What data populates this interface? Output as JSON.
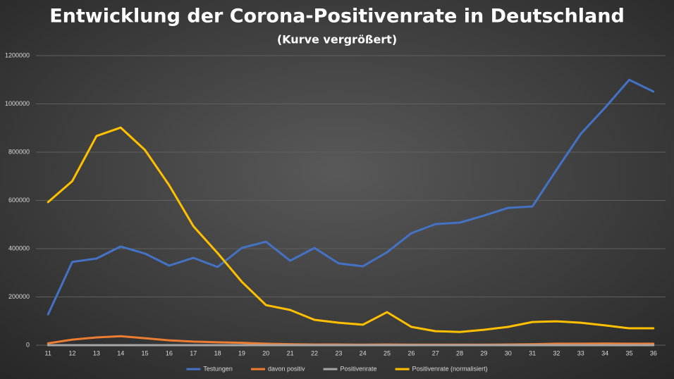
{
  "chart_data": {
    "type": "line",
    "title": "Entwicklung der Corona-Positivenrate in Deutschland",
    "subtitle": "(Kurve vergrößert)",
    "categories": [
      "11",
      "12",
      "13",
      "14",
      "15",
      "16",
      "17",
      "18",
      "19",
      "20",
      "21",
      "22",
      "23",
      "24",
      "25",
      "26",
      "27",
      "28",
      "29",
      "30",
      "31",
      "32",
      "33",
      "34",
      "35",
      "36"
    ],
    "series": [
      {
        "name": "Testungen",
        "color": "#4472c4",
        "values": [
          128000,
          345000,
          359000,
          409000,
          380000,
          330000,
          362000,
          324000,
          403000,
          429000,
          350000,
          403000,
          339000,
          327000,
          385000,
          464000,
          502000,
          508000,
          537000,
          569000,
          575000,
          727000,
          876000,
          984000,
          1100000,
          1051000
        ]
      },
      {
        "name": "davon positiv",
        "color": "#ed7d31",
        "values": [
          8000,
          23000,
          32000,
          37000,
          29000,
          20000,
          15000,
          12000,
          10000,
          6000,
          4000,
          3000,
          3000,
          2000,
          3000,
          2000,
          2000,
          2000,
          2000,
          3000,
          4000,
          6000,
          6000,
          7000,
          6000,
          6000
        ]
      },
      {
        "name": "Positivenrate",
        "color": "#a5a5a5",
        "values": [
          6,
          7,
          9,
          9,
          8,
          6,
          4,
          4,
          2,
          1.5,
          1.2,
          0.8,
          0.8,
          0.7,
          0.8,
          0.5,
          0.4,
          0.4,
          0.4,
          0.5,
          0.7,
          0.8,
          0.7,
          0.7,
          0.5,
          0.6
        ]
      },
      {
        "name": "Positivenrate (normalisiert)",
        "color": "#ffc000",
        "values": [
          593000,
          680000,
          867000,
          902000,
          809000,
          663000,
          493000,
          382000,
          263000,
          166000,
          146000,
          105000,
          93000,
          85000,
          137000,
          76000,
          58000,
          55000,
          64000,
          76000,
          96000,
          99000,
          93000,
          82000,
          70000,
          70000
        ]
      }
    ],
    "ylim": [
      0,
      1200000
    ],
    "yticks": [
      0,
      200000,
      400000,
      600000,
      800000,
      1000000,
      1200000
    ],
    "grid": true,
    "legend": "bottom"
  }
}
